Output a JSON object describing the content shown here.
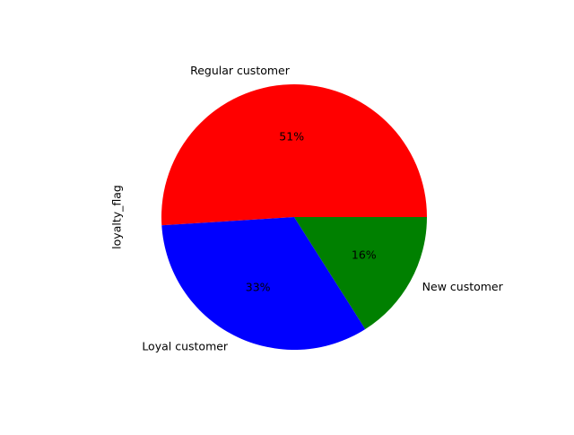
{
  "chart_data": {
    "type": "pie",
    "title": "",
    "ylabel": "loyalty_flag",
    "start_angle": 0,
    "direction": "counterclockwise",
    "slices": [
      {
        "label": "Regular customer",
        "value": 51,
        "pct_label": "51%",
        "color": "#ff0000"
      },
      {
        "label": "Loyal customer",
        "value": 33,
        "pct_label": "33%",
        "color": "#0000ff"
      },
      {
        "label": "New customer",
        "value": 16,
        "pct_label": "16%",
        "color": "#008000"
      }
    ]
  }
}
